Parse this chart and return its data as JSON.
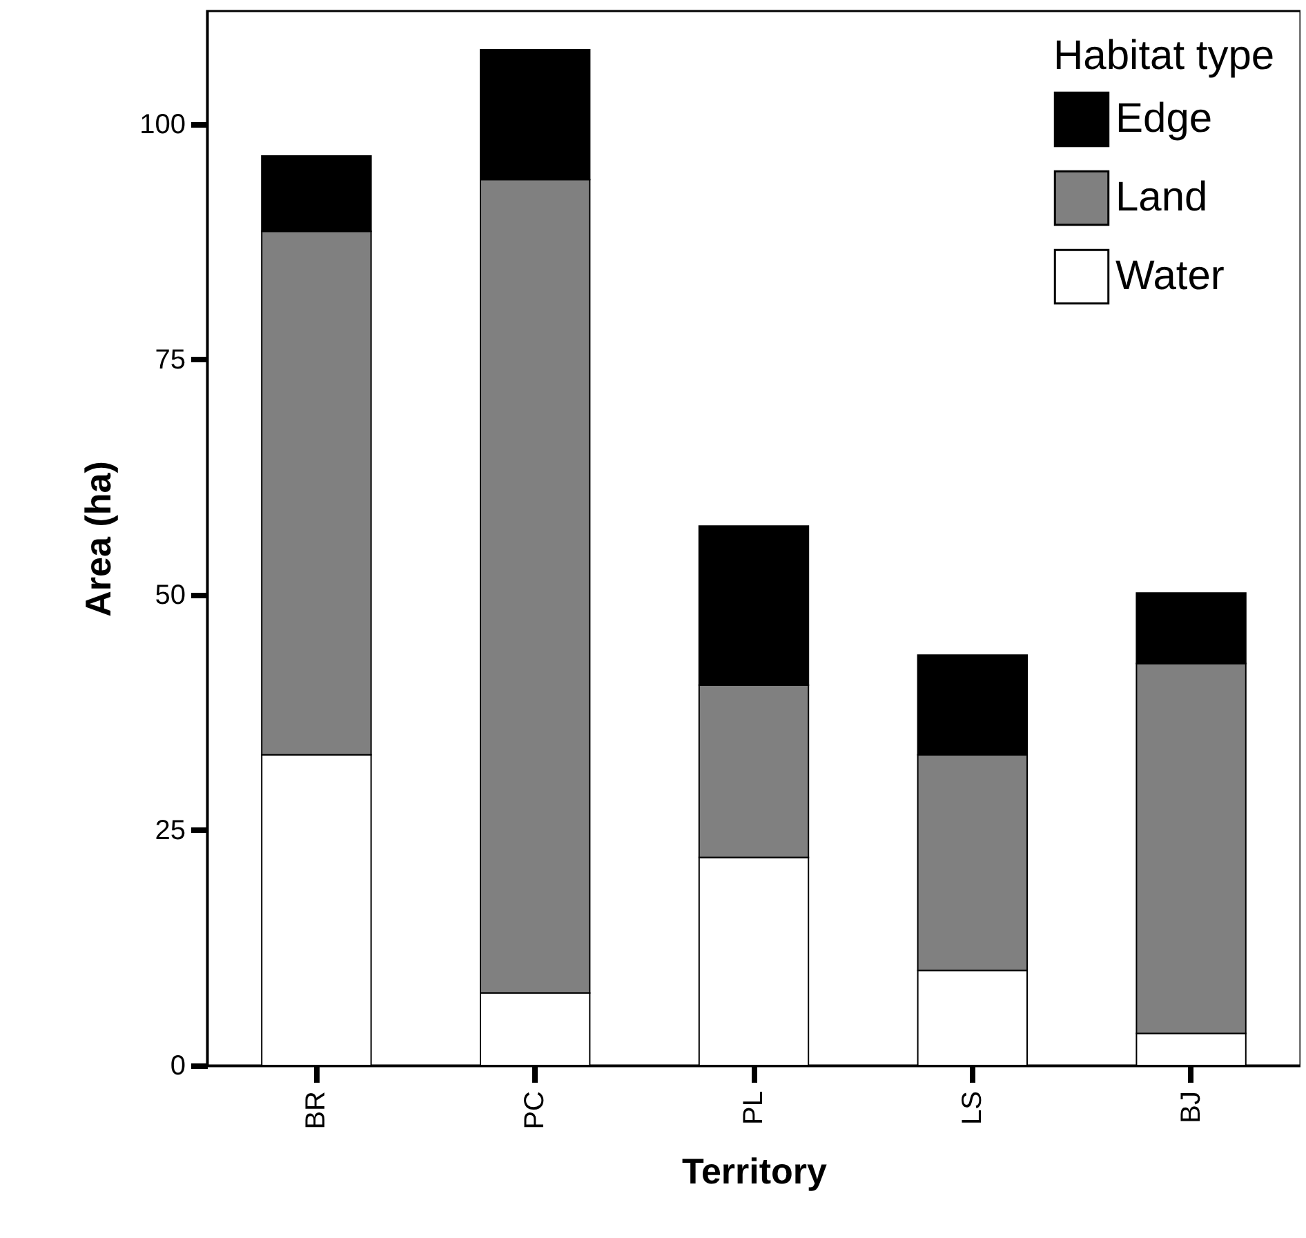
{
  "chart_data": {
    "type": "bar",
    "stacked": true,
    "xlabel": "Territory",
    "ylabel": "Area (ha)",
    "legend_title": "Habitat type",
    "legend": "top right",
    "categories": [
      "BR",
      "PC",
      "PL",
      "LS",
      "BJ"
    ],
    "ylim": [
      0,
      112
    ],
    "yticks": [
      0,
      25,
      50,
      75,
      100
    ],
    "series": [
      {
        "name": "Water",
        "color": "#ffffff",
        "values": [
          33.0,
          7.7,
          22.1,
          10.1,
          3.4
        ]
      },
      {
        "name": "Land",
        "color": "#808080",
        "values": [
          55.6,
          86.4,
          18.3,
          22.9,
          39.3
        ]
      },
      {
        "name": "Edge",
        "color": "#000000",
        "values": [
          8.0,
          13.8,
          16.9,
          10.6,
          7.5
        ]
      }
    ]
  }
}
